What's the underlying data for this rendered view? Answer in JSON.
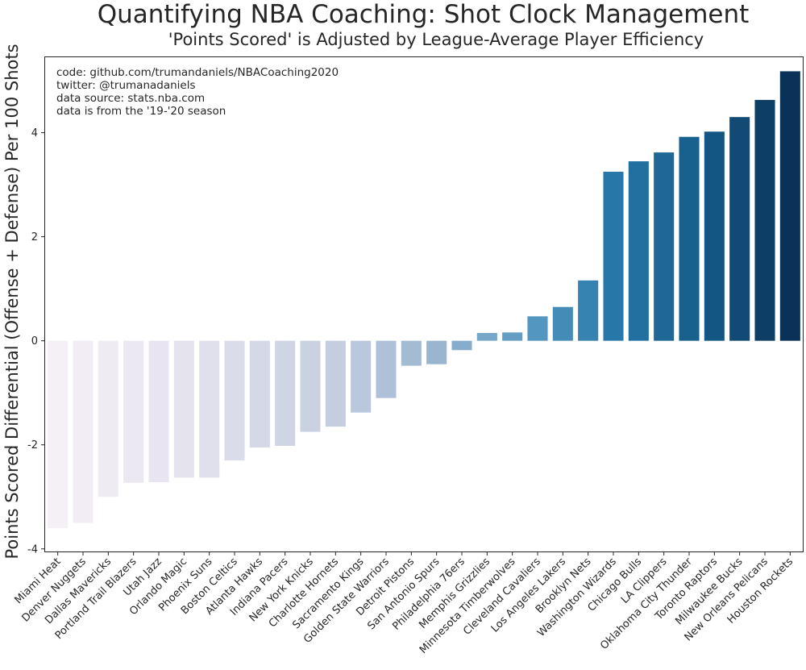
{
  "chart_data": {
    "type": "bar",
    "title": "Quantifying NBA Coaching: Shot Clock Management",
    "subtitle": "'Points Scored' is Adjusted by League-Average Player Efficiency",
    "xlabel": "",
    "ylabel": "Points Scored Differential (Offense + Defense) Per 100 Shots",
    "ylim": [
      -4.05,
      5.45
    ],
    "yticks": [
      -4,
      -2,
      0,
      2,
      4
    ],
    "ytick_labels": [
      "-4",
      "-2",
      "0",
      "2",
      "4"
    ],
    "grid": false,
    "annotations": [
      "code: github.com/trumandaniels/NBACoaching2020",
      "twitter: @trumanadaniels",
      "data source: stats.nba.com",
      "data is from the '19-'20 season"
    ],
    "categories": [
      "Miami Heat",
      "Denver Nuggets",
      "Dallas Mavericks",
      "Portland Trail Blazers",
      "Utah Jazz",
      "Orlando Magic",
      "Phoenix Suns",
      "Boston Celtics",
      "Atlanta Hawks",
      "Indiana Pacers",
      "New York Knicks",
      "Charlotte Hornets",
      "Sacramento Kings",
      "Golden State Warriors",
      "Detroit Pistons",
      "San Antonio Spurs",
      "Philadelphia 76ers",
      "Memphis Grizzlies",
      "Minnesota Timberwolves",
      "Cleveland Cavaliers",
      "Los Angeles Lakers",
      "Brooklyn Nets",
      "Washington Wizards",
      "Chicago Bulls",
      "LA Clippers",
      "Oklahoma City Thunder",
      "Toronto Raptors",
      "Milwaukee Bucks",
      "New Orleans Pelicans",
      "Houston Rockets"
    ],
    "values": [
      -3.6,
      -3.5,
      -3.0,
      -2.73,
      -2.72,
      -2.63,
      -2.63,
      -2.3,
      -2.05,
      -2.02,
      -1.75,
      -1.65,
      -1.38,
      -1.1,
      -0.48,
      -0.45,
      -0.18,
      0.15,
      0.16,
      0.47,
      0.65,
      1.16,
      3.25,
      3.45,
      3.62,
      3.92,
      4.02,
      4.3,
      4.63,
      5.18
    ]
  }
}
